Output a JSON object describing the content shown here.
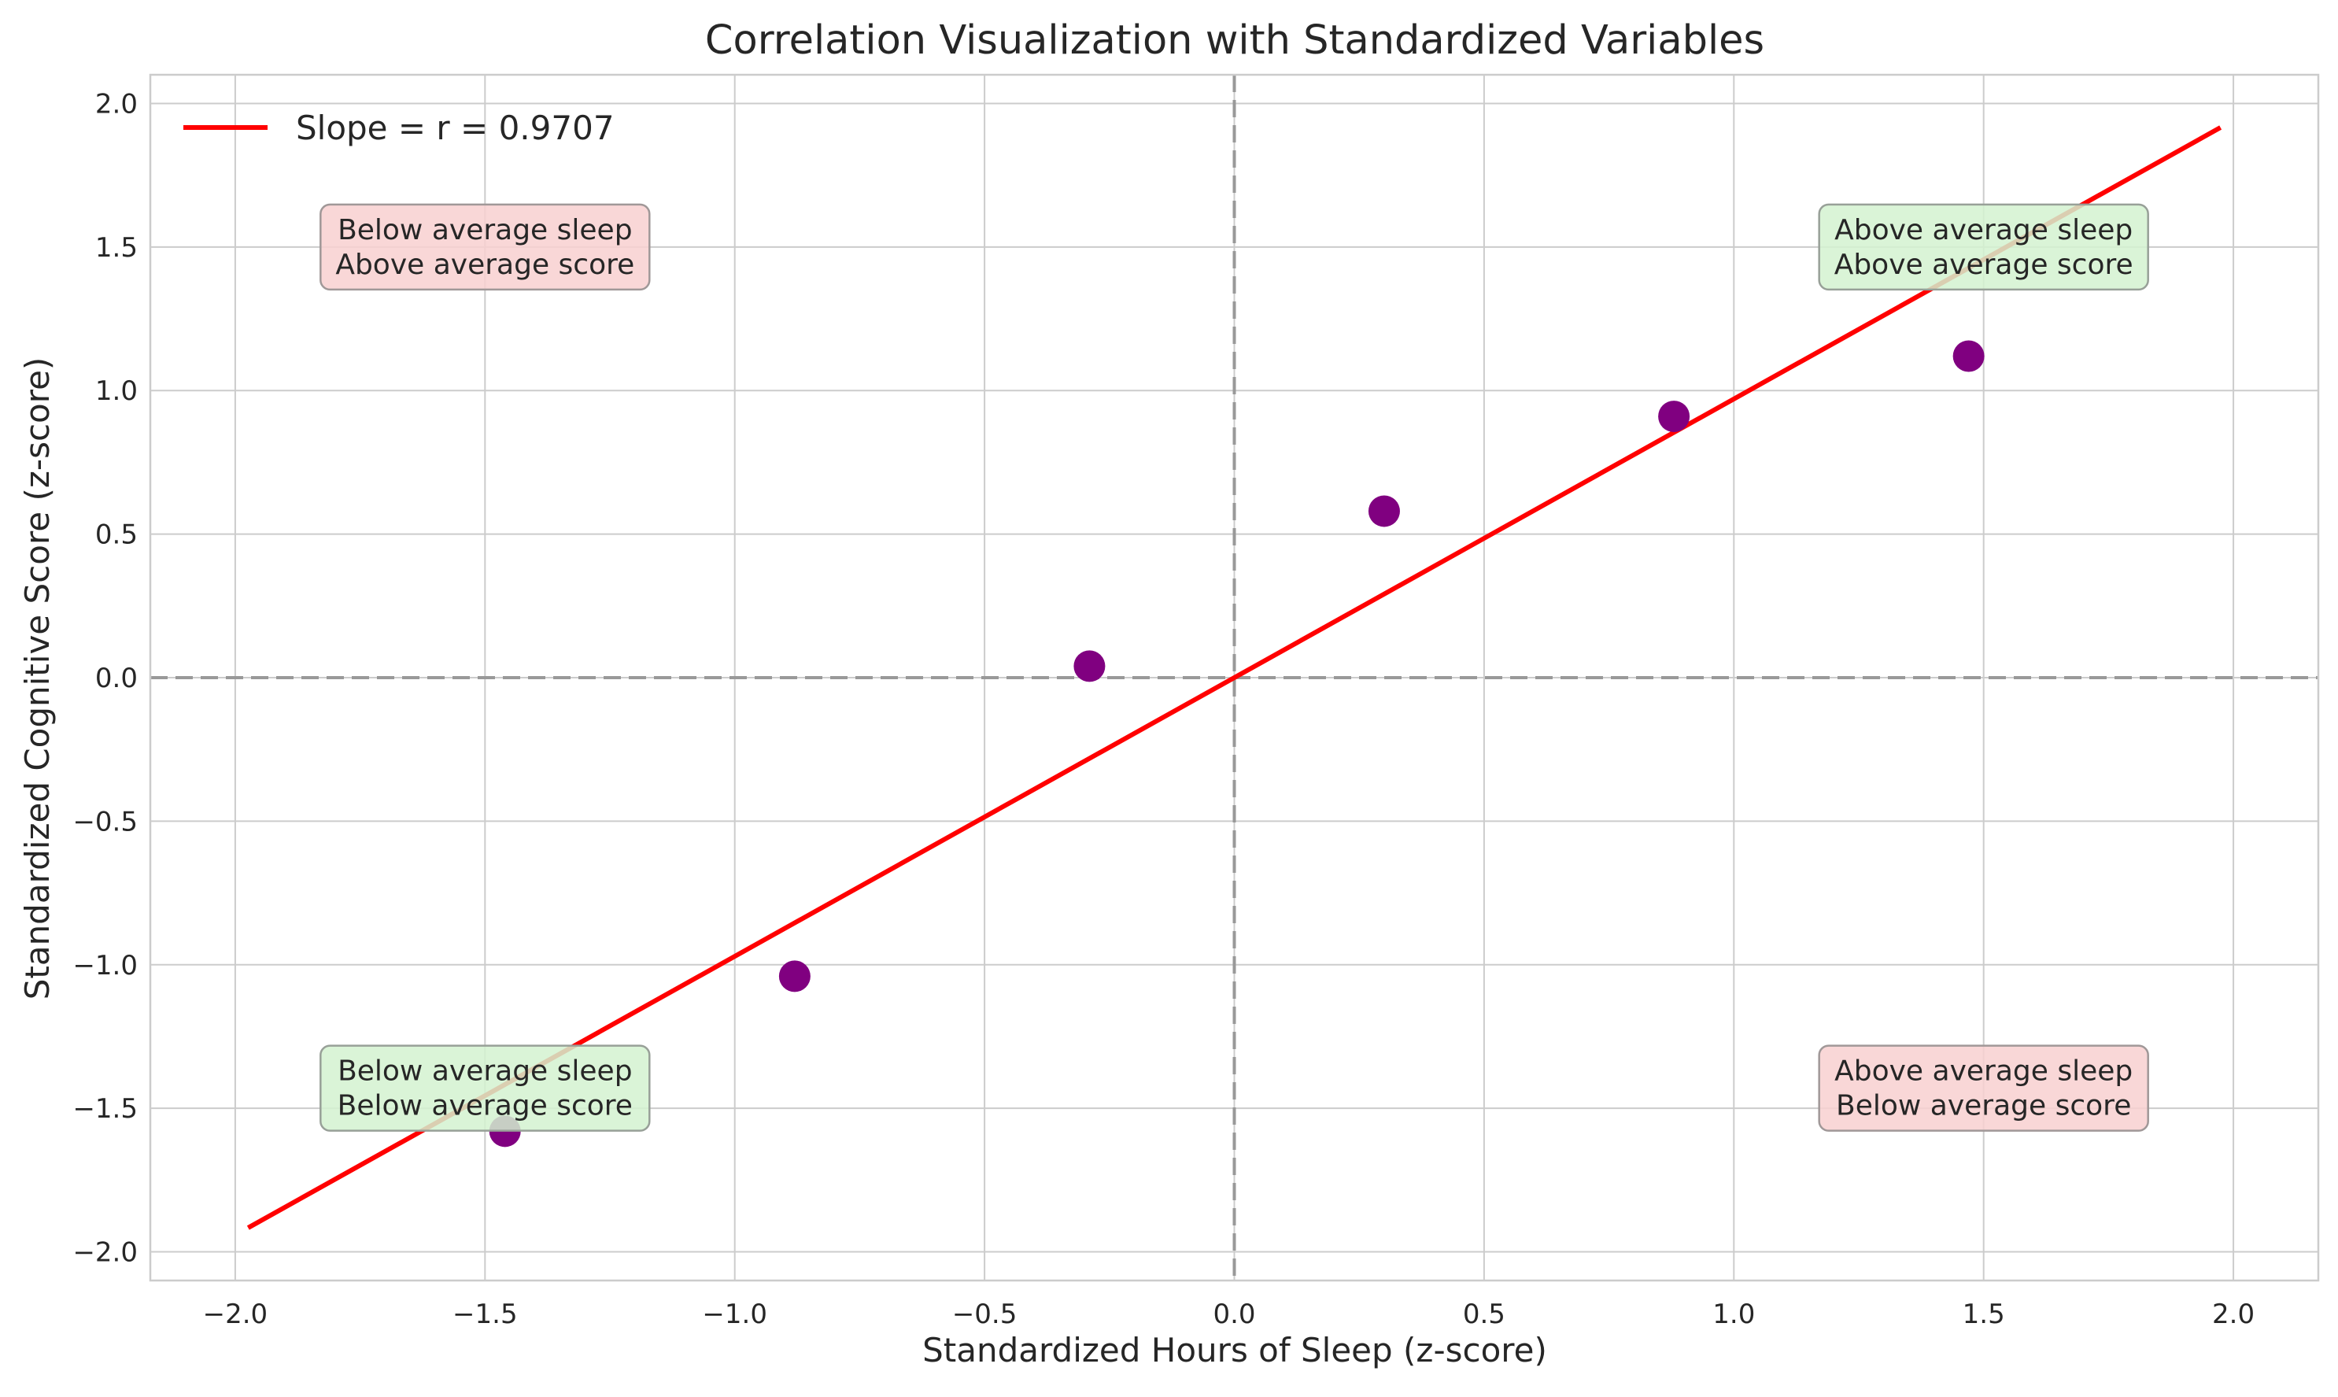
{
  "chart_data": {
    "type": "scatter",
    "title": "Correlation Visualization with Standardized Variables",
    "xlabel": "Standardized Hours of Sleep (z-score)",
    "ylabel": "Standardized Cognitive Score (z-score)",
    "xlim": [
      -2.17,
      2.17
    ],
    "ylim": [
      -2.1,
      2.1
    ],
    "grid": true,
    "legend_placement": "top-left",
    "xticks": [
      -2.0,
      -1.5,
      -1.0,
      -0.5,
      0.0,
      0.5,
      1.0,
      1.5,
      2.0
    ],
    "yticks": [
      -2.0,
      -1.5,
      -1.0,
      -0.5,
      0.0,
      0.5,
      1.0,
      1.5,
      2.0
    ],
    "xtick_labels": [
      "−2.0",
      "−1.5",
      "−1.0",
      "−0.5",
      "0.0",
      "0.5",
      "1.0",
      "1.5",
      "2.0"
    ],
    "ytick_labels": [
      "−2.0",
      "−1.5",
      "−1.0",
      "−0.5",
      "0.0",
      "0.5",
      "1.0",
      "1.5",
      "2.0"
    ],
    "series": [
      {
        "kind": "scatter",
        "color": "#800080",
        "points": [
          {
            "x": -1.46,
            "y": -1.58
          },
          {
            "x": -0.88,
            "y": -1.04
          },
          {
            "x": -0.29,
            "y": 0.04
          },
          {
            "x": 0.3,
            "y": 0.58
          },
          {
            "x": 0.88,
            "y": 0.91
          },
          {
            "x": 1.47,
            "y": 1.12
          }
        ]
      },
      {
        "kind": "line",
        "name": "Slope = r = 0.9707",
        "color": "#ff0000",
        "slope": 0.9707,
        "x_range": [
          -1.97,
          1.97
        ]
      }
    ],
    "reference_lines": [
      {
        "axis": "y",
        "value": 0.0,
        "style": "dashed",
        "color": "#999999"
      },
      {
        "axis": "x",
        "value": 0.0,
        "style": "dashed",
        "color": "#999999"
      }
    ],
    "annotations": [
      {
        "lines": [
          "Below average sleep",
          "Above average score"
        ],
        "x": -1.5,
        "y": 1.5,
        "fill": "#f8d0d0",
        "stroke": "#a09898"
      },
      {
        "lines": [
          "Above average sleep",
          "Above average score"
        ],
        "x": 1.5,
        "y": 1.5,
        "fill": "#d4f2d0",
        "stroke": "#98a098"
      },
      {
        "lines": [
          "Below average sleep",
          "Below average score"
        ],
        "x": -1.5,
        "y": -1.43,
        "fill": "#d4f2d0",
        "stroke": "#98a098"
      },
      {
        "lines": [
          "Above average sleep",
          "Below average score"
        ],
        "x": 1.5,
        "y": -1.43,
        "fill": "#f8d0d0",
        "stroke": "#a09898"
      }
    ]
  }
}
